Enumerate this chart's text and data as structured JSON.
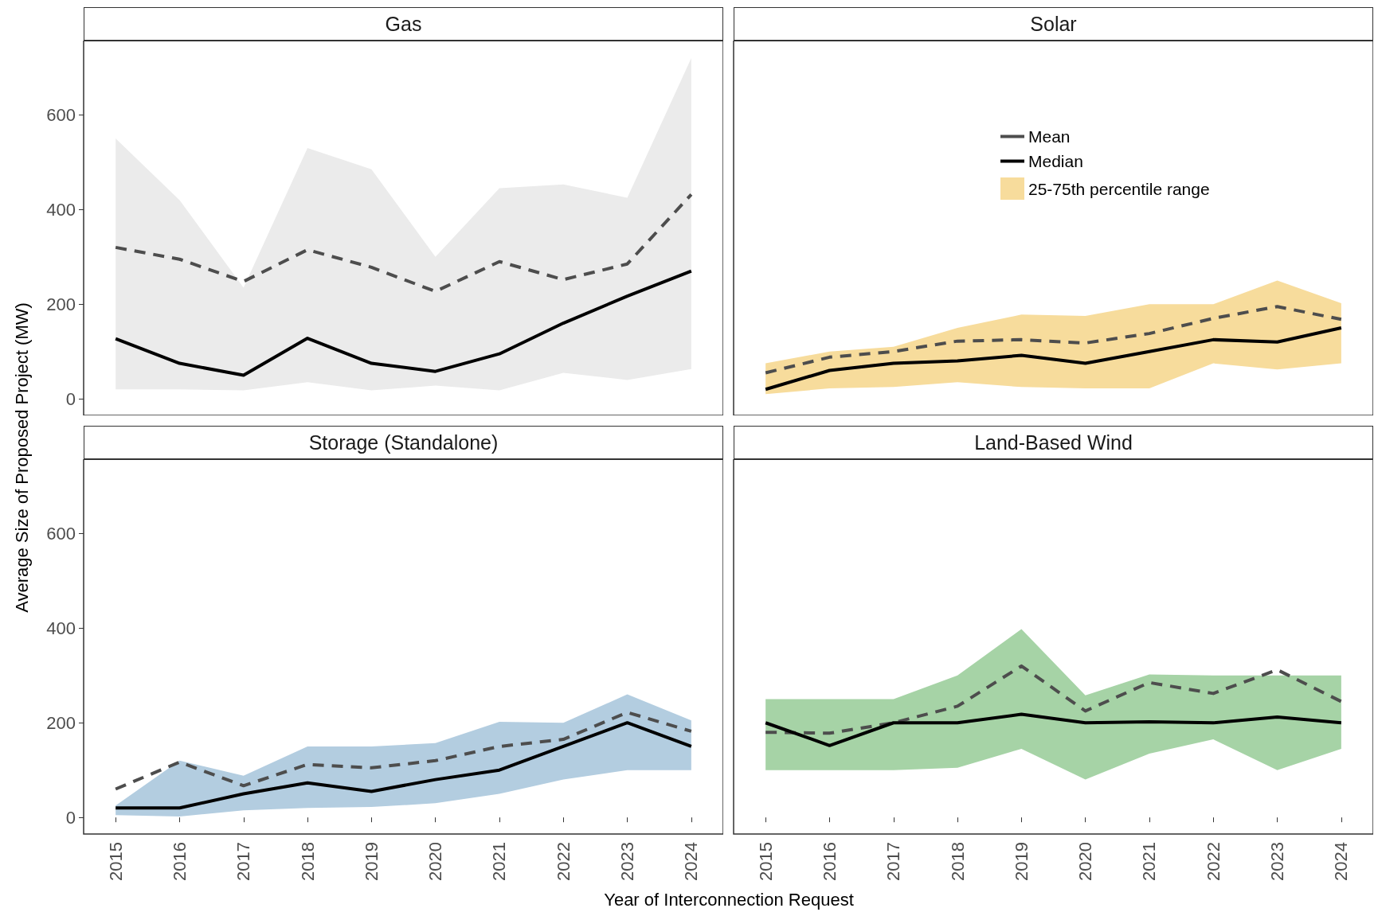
{
  "chart_data": [
    {
      "type": "line",
      "title": "Gas",
      "ylabel": "Average Size of Proposed Project (MW)",
      "categories": [
        "2015",
        "2016",
        "2017",
        "2018",
        "2019",
        "2020",
        "2021",
        "2022",
        "2023",
        "2024"
      ],
      "ylim": [
        -35,
        757
      ],
      "yticks": [
        0,
        200,
        400,
        600
      ],
      "tick_labels": "y",
      "series": [
        {
          "color": "#4d4d4d",
          "line_style": "dashed",
          "values": [
            320,
            295,
            248,
            315,
            278,
            227,
            290,
            252,
            285,
            432
          ]
        },
        {
          "color": "#000000",
          "line_style": "solid",
          "values": [
            127,
            75,
            50,
            128,
            75,
            58,
            95,
            160,
            217,
            270
          ]
        },
        {
          "type": "area",
          "color": "#ebebeb",
          "values": [
            null,
            null,
            null,
            null,
            null,
            null,
            null,
            null,
            null,
            null
          ],
          "lower": [
            20,
            20,
            18,
            35,
            18,
            28,
            18,
            55,
            40,
            63
          ],
          "upper": [
            550,
            420,
            235,
            530,
            485,
            300,
            445,
            453,
            425,
            720
          ]
        }
      ]
    },
    {
      "type": "line",
      "title": "Solar",
      "categories": [
        "2015",
        "2016",
        "2017",
        "2018",
        "2019",
        "2020",
        "2021",
        "2022",
        "2023",
        "2024"
      ],
      "ylim": [
        -35,
        757
      ],
      "yticks": [
        0,
        200,
        400,
        600
      ],
      "tick_labels": false,
      "legend": "top",
      "series": [
        {
          "name": "Mean",
          "color": "#4d4d4d",
          "line_style": "dashed",
          "values": [
            55,
            88,
            100,
            122,
            125,
            118,
            138,
            170,
            195,
            168
          ]
        },
        {
          "name": "Median",
          "color": "#000000",
          "line_style": "solid",
          "values": [
            20,
            60,
            75,
            80,
            92,
            75,
            100,
            125,
            120,
            150
          ]
        },
        {
          "name": "25-75th percentile range",
          "type": "area",
          "color": "#f7dc9c",
          "values": [
            null,
            null,
            null,
            null,
            null,
            null,
            null,
            null,
            null,
            null
          ],
          "lower": [
            10,
            22,
            25,
            35,
            25,
            22,
            22,
            75,
            62,
            75
          ],
          "upper": [
            75,
            100,
            110,
            150,
            178,
            175,
            200,
            200,
            250,
            202
          ]
        }
      ]
    },
    {
      "type": "line",
      "title": "Storage (Standalone)",
      "xlabel": "Year of Interconnection Request",
      "categories": [
        "2015",
        "2016",
        "2017",
        "2018",
        "2019",
        "2020",
        "2021",
        "2022",
        "2023",
        "2024"
      ],
      "ylim": [
        -35,
        757
      ],
      "yticks": [
        0,
        200,
        400,
        600
      ],
      "series": [
        {
          "color": "#4d4d4d",
          "line_style": "dashed",
          "values": [
            60,
            117,
            67,
            112,
            105,
            120,
            150,
            165,
            222,
            182
          ]
        },
        {
          "color": "#000000",
          "line_style": "solid",
          "values": [
            20,
            20,
            50,
            73,
            55,
            80,
            100,
            150,
            200,
            150
          ]
        },
        {
          "type": "area",
          "color": "#b3cde0",
          "values": [
            null,
            null,
            null,
            null,
            null,
            null,
            null,
            null,
            null,
            null
          ],
          "lower": [
            5,
            2,
            15,
            20,
            22,
            30,
            50,
            80,
            100,
            100
          ],
          "upper": [
            25,
            120,
            88,
            150,
            150,
            157,
            202,
            200,
            260,
            205
          ]
        }
      ]
    },
    {
      "type": "line",
      "title": "Land-Based Wind",
      "categories": [
        "2015",
        "2016",
        "2017",
        "2018",
        "2019",
        "2020",
        "2021",
        "2022",
        "2023",
        "2024"
      ],
      "ylim": [
        -35,
        757
      ],
      "yticks": [
        0,
        200,
        400,
        600
      ],
      "tick_labels": "x",
      "series": [
        {
          "color": "#4d4d4d",
          "line_style": "dashed",
          "values": [
            180,
            178,
            200,
            235,
            320,
            225,
            285,
            262,
            312,
            245
          ]
        },
        {
          "color": "#000000",
          "line_style": "solid",
          "values": [
            200,
            152,
            200,
            200,
            218,
            200,
            202,
            200,
            212,
            200
          ]
        },
        {
          "type": "area",
          "color": "#a6d3a6",
          "values": [
            null,
            null,
            null,
            null,
            null,
            null,
            null,
            null,
            null,
            null
          ],
          "lower": [
            100,
            100,
            100,
            105,
            145,
            80,
            135,
            165,
            100,
            145
          ],
          "upper": [
            250,
            250,
            250,
            300,
            398,
            258,
            302,
            300,
            300,
            300
          ]
        }
      ]
    }
  ]
}
